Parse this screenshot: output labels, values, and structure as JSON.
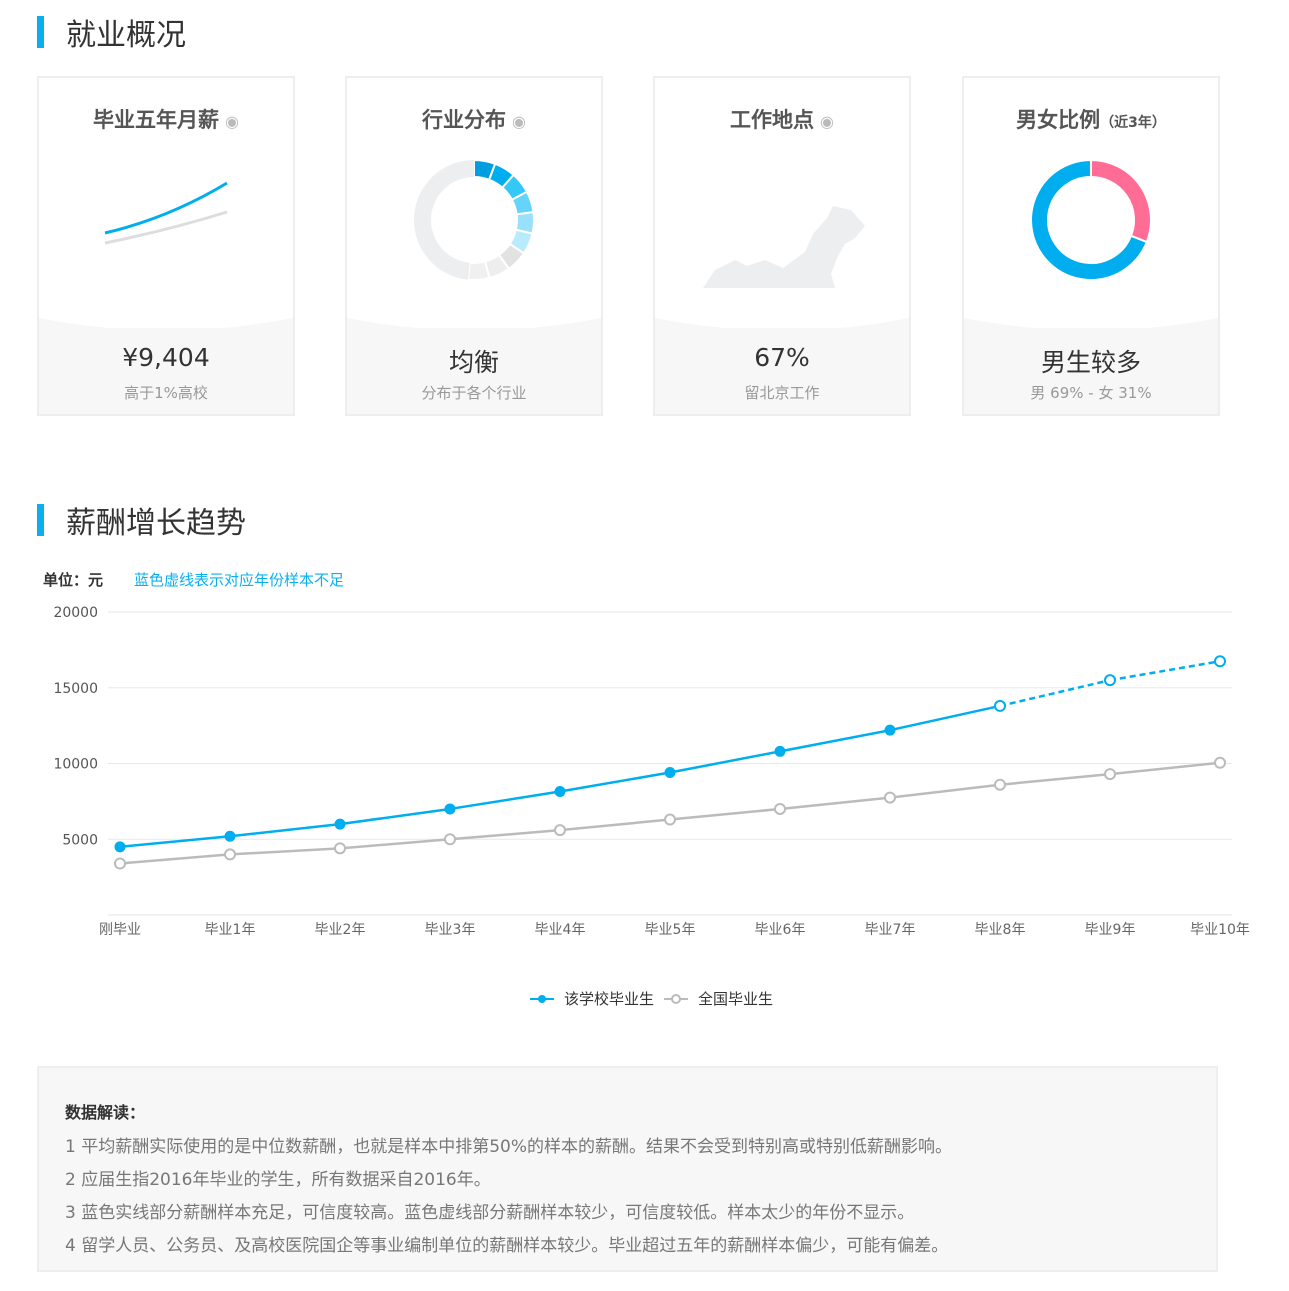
{
  "section1": {
    "title": "就业概况"
  },
  "cards": [
    {
      "title": "毕业五年月薪",
      "icon": "eye-icon",
      "value": "¥9,404",
      "sub": "高于1%高校"
    },
    {
      "title": "行业分布",
      "icon": "eye-icon",
      "value": "均衡",
      "sub": "分布于各个行业"
    },
    {
      "title": "工作地点",
      "icon": "eye-icon",
      "value": "67%",
      "sub": "留北京工作"
    },
    {
      "title": "男女比例",
      "title_note": "（近3年）",
      "value": "男生较多",
      "sub": "男 69% - 女 31%",
      "male_pct": 69,
      "female_pct": 31,
      "male_color": "#00aeef",
      "female_color": "#ff6d96"
    }
  ],
  "section2": {
    "title": "薪酬增长趋势",
    "unit": "单位：元",
    "note": "蓝色虚线表示对应年份样本不足"
  },
  "chart_data": {
    "type": "line",
    "categories": [
      "刚毕业",
      "毕业1年",
      "毕业2年",
      "毕业3年",
      "毕业4年",
      "毕业5年",
      "毕业6年",
      "毕业7年",
      "毕业8年",
      "毕业9年",
      "毕业10年"
    ],
    "ylim": [
      0,
      20000
    ],
    "yticks": [
      "5000",
      "10000",
      "15000",
      "20000"
    ],
    "grid": true,
    "legend_position": "bottom",
    "series": [
      {
        "name": "该学校毕业生",
        "color": "#00aeef",
        "values": [
          4500,
          5200,
          6000,
          7000,
          8150,
          9404,
          10800,
          12200,
          13800,
          15500,
          16750
        ],
        "dashed_from_index": 8
      },
      {
        "name": "全国毕业生",
        "color": "#bbbbbb",
        "values": [
          3400,
          4000,
          4400,
          5000,
          5600,
          6300,
          7000,
          7750,
          8600,
          9300,
          10050
        ]
      }
    ]
  },
  "notes": {
    "title": "数据解读：",
    "items": [
      "1 平均薪酬实际使用的是中位数薪酬，也就是样本中排第50%的样本的薪酬。结果不会受到特别高或特别低薪酬影响。",
      "2 应届生指2016年毕业的学生，所有数据采自2016年。",
      "3 蓝色实线部分薪酬样本充足，可信度较高。蓝色虚线部分薪酬样本较少，可信度较低。样本太少的年份不显示。",
      "4 留学人员、公务员、及高校医院国企等事业编制单位的薪酬样本较少。毕业超过五年的薪酬样本偏少，可能有偏差。"
    ]
  }
}
